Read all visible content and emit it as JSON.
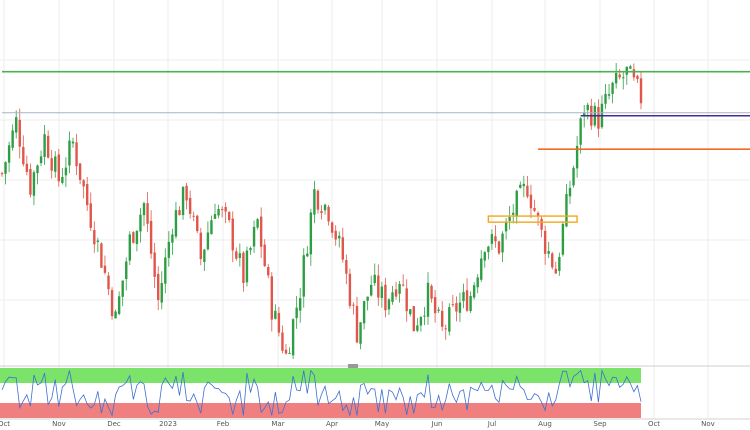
{
  "colors": {
    "background": "#ffffff",
    "grid": "#ececec",
    "bullish": "#2e9e44",
    "bearish": "#e0564a",
    "resistance_green": "#4caf50",
    "level_blue": "#a6b4c8",
    "level_purple": "#4b2a8c",
    "level_orange": "#f26b21",
    "box_orange": "#f3a81b",
    "rsi_line": "#3d6fd1",
    "rsi_overbought_zone": "#7be36a",
    "rsi_oversold_zone": "#f08080"
  },
  "chart_data": [
    {
      "type": "candlestick",
      "title": "",
      "x_axis": {
        "tick_labels": [
          "Oct",
          "Nov",
          "Dec",
          "2023",
          "Feb",
          "Mar",
          "Apr",
          "May",
          "Jun",
          "Jul",
          "Aug",
          "Sep",
          "Oct",
          "Nov"
        ]
      },
      "ylim": [
        0,
        100
      ],
      "grid": true,
      "close_path": [
        [
          0,
          62
        ],
        [
          4,
          79
        ],
        [
          8,
          58
        ],
        [
          12,
          74
        ],
        [
          16,
          60
        ],
        [
          20,
          72
        ],
        [
          24,
          52
        ],
        [
          28,
          34
        ],
        [
          32,
          14
        ],
        [
          36,
          40
        ],
        [
          40,
          52
        ],
        [
          44,
          20
        ],
        [
          48,
          46
        ],
        [
          52,
          56
        ],
        [
          56,
          34
        ],
        [
          60,
          52
        ],
        [
          64,
          44
        ],
        [
          68,
          28
        ],
        [
          72,
          46
        ],
        [
          76,
          18
        ],
        [
          80,
          2
        ],
        [
          84,
          24
        ],
        [
          88,
          56
        ],
        [
          92,
          50
        ],
        [
          96,
          34
        ],
        [
          100,
          10
        ],
        [
          104,
          26
        ],
        [
          108,
          20
        ],
        [
          112,
          28
        ],
        [
          116,
          12
        ],
        [
          120,
          22
        ],
        [
          124,
          10
        ],
        [
          128,
          18
        ],
        [
          132,
          22
        ],
        [
          136,
          40
        ],
        [
          140,
          38
        ],
        [
          144,
          50
        ],
        [
          148,
          58
        ],
        [
          152,
          42
        ],
        [
          156,
          30
        ],
        [
          160,
          58
        ],
        [
          164,
          84
        ],
        [
          168,
          80
        ],
        [
          172,
          90
        ],
        [
          176,
          95
        ],
        [
          180,
          87
        ]
      ],
      "levels": [
        {
          "name": "upper-resistance",
          "color": "#4caf50",
          "y": 95.5,
          "x_start": 0
        },
        {
          "name": "previous-high",
          "color": "#a6b4c8",
          "y": 82,
          "x_start": 0
        },
        {
          "name": "support-purple",
          "color": "#4b2a8c",
          "y": 81,
          "x_start": 163
        },
        {
          "name": "support-orange",
          "color": "#f26b21",
          "y": 70,
          "x_start": 151
        }
      ],
      "zones": [
        {
          "name": "demand-zone",
          "color": "#f3a81b",
          "y_low": 46,
          "y_high": 48,
          "x_start": 137,
          "x_end": 162
        }
      ],
      "legend": "none"
    },
    {
      "type": "line",
      "title": "",
      "ylim": [
        0,
        100
      ],
      "zones": [
        {
          "name": "overbought",
          "color": "#7be36a",
          "y_low": 70,
          "y_high": 100
        },
        {
          "name": "oversold",
          "color": "#f08080",
          "y_low": 0,
          "y_high": 30
        }
      ]
    }
  ]
}
